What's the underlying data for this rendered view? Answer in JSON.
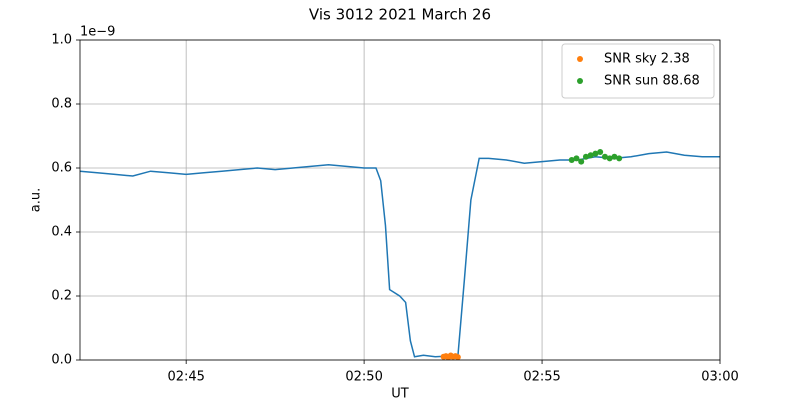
{
  "chart_data": {
    "type": "line",
    "title": "Vis 3012 2021 March 26",
    "xlabel": "UT",
    "ylabel": "a.u.",
    "y_offset_label": "1e−9",
    "xlim": [
      "02:42:01",
      "03:00:00"
    ],
    "xticks": [
      "02:45",
      "02:50",
      "02:55",
      "03:00"
    ],
    "ylim": [
      0,
      1
    ],
    "yticks": [
      {
        "value": 0,
        "label": "0.0"
      },
      0.2,
      0.4,
      0.6,
      0.8,
      {
        "value": 1,
        "label": "1.0"
      }
    ],
    "grid": true,
    "legend": "upper right",
    "series": [
      {
        "type": "line",
        "color": "#1f77b4",
        "x": [
          "02:42:01",
          "02:42:30",
          "02:43:00",
          "02:43:30",
          "02:44:00",
          "02:44:30",
          "02:45:00",
          "02:45:30",
          "02:46:00",
          "02:46:30",
          "02:47:00",
          "02:47:30",
          "02:48:00",
          "02:48:30",
          "02:49:00",
          "02:49:30",
          "02:50:00",
          "02:50:20",
          "02:50:28",
          "02:50:36",
          "02:50:43",
          "02:51:00",
          "02:51:10",
          "02:51:18",
          "02:51:25",
          "02:51:40",
          "02:52:00",
          "02:52:20",
          "02:52:38",
          "02:52:49",
          "02:53:00",
          "02:53:14",
          "02:53:30",
          "02:54:00",
          "02:54:30",
          "02:55:00",
          "02:55:30",
          "02:56:00",
          "02:56:30",
          "02:57:00",
          "02:57:30",
          "02:58:00",
          "02:58:30",
          "02:59:00",
          "02:59:30",
          "03:00:00"
        ],
        "values": [
          0.59,
          0.585,
          0.58,
          0.575,
          0.59,
          0.585,
          0.58,
          0.585,
          0.59,
          0.595,
          0.6,
          0.595,
          0.6,
          0.605,
          0.61,
          0.605,
          0.6,
          0.6,
          0.56,
          0.42,
          0.22,
          0.2,
          0.18,
          0.06,
          0.01,
          0.015,
          0.01,
          0.012,
          0.01,
          0.25,
          0.5,
          0.63,
          0.63,
          0.625,
          0.615,
          0.62,
          0.625,
          0.625,
          0.635,
          0.63,
          0.635,
          0.645,
          0.65,
          0.64,
          0.635,
          0.635
        ]
      },
      {
        "type": "scatter",
        "name": "SNR sky 2.38",
        "color": "#ff7f0e",
        "x": [
          "02:52:14",
          "02:52:18",
          "02:52:22",
          "02:52:26",
          "02:52:30",
          "02:52:34",
          "02:52:38"
        ],
        "values": [
          0.01,
          0.012,
          0.008,
          0.014,
          0.01,
          0.012,
          0.009
        ]
      },
      {
        "type": "scatter",
        "name": "SNR sun 88.68",
        "color": "#2ca02c",
        "x": [
          "02:55:50",
          "02:55:58",
          "02:56:06",
          "02:56:14",
          "02:56:22",
          "02:56:30",
          "02:56:38",
          "02:56:46",
          "02:56:54",
          "02:57:02",
          "02:57:10"
        ],
        "values": [
          0.625,
          0.63,
          0.62,
          0.635,
          0.64,
          0.645,
          0.65,
          0.635,
          0.63,
          0.635,
          0.63
        ]
      }
    ]
  }
}
